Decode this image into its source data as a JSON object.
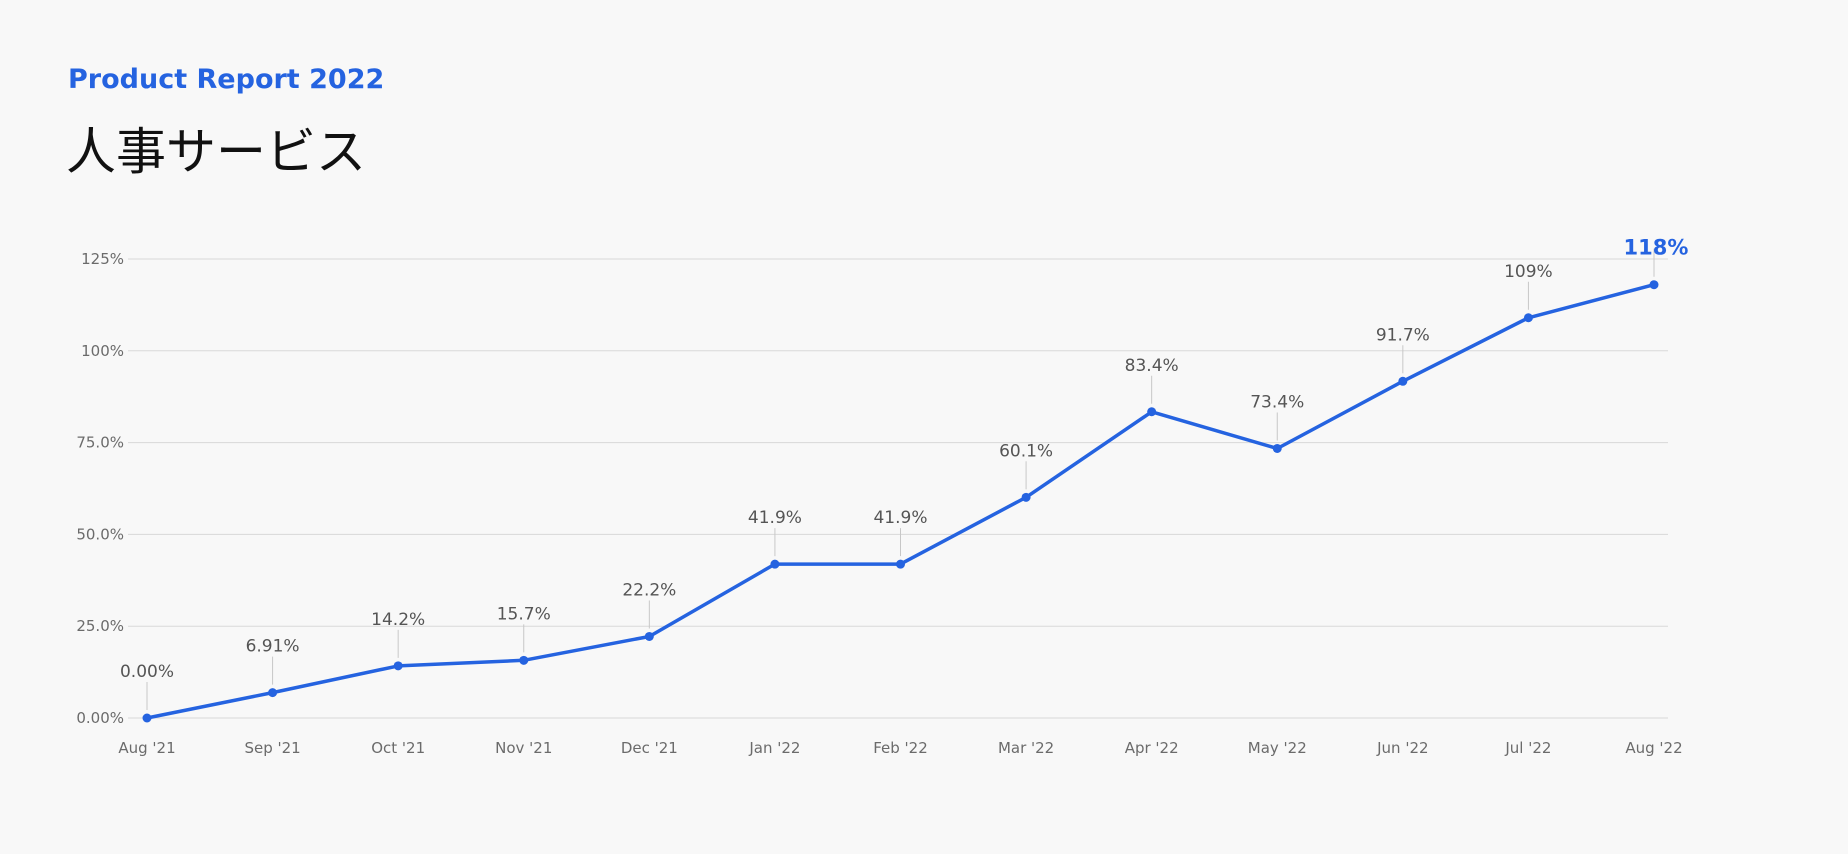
{
  "header": {
    "kicker": "Product Report 2022",
    "title": "人事サービス"
  },
  "colors": {
    "accent": "#2563e0",
    "grid": "#d9d9d9",
    "axis_text": "#6b6b6b",
    "data_label": "#555555",
    "background": "#f8f8f8"
  },
  "chart_data": {
    "type": "line",
    "categories": [
      "Aug '21",
      "Sep '21",
      "Oct '21",
      "Nov '21",
      "Dec '21",
      "Jan '22",
      "Feb '22",
      "Mar '22",
      "Apr '22",
      "May '22",
      "Jun '22",
      "Jul '22",
      "Aug '22"
    ],
    "series": [
      {
        "values": [
          0,
          6.91,
          14.2,
          15.7,
          22.2,
          41.9,
          41.9,
          60.1,
          83.4,
          73.4,
          91.7,
          109,
          118
        ],
        "labels": [
          "0.00%",
          "6.91%",
          "14.2%",
          "15.7%",
          "22.2%",
          "41.9%",
          "41.9%",
          "60.1%",
          "83.4%",
          "73.4%",
          "91.7%",
          "109%",
          "118%"
        ]
      }
    ],
    "ylim": [
      0,
      125
    ],
    "yticks": [
      0,
      25,
      50,
      75,
      100,
      125
    ],
    "ytick_labels": [
      "0.00%",
      "25.0%",
      "50.0%",
      "75.0%",
      "100%",
      "125%"
    ],
    "grid": true,
    "highlight_last": true,
    "xlabel": "",
    "ylabel": ""
  }
}
